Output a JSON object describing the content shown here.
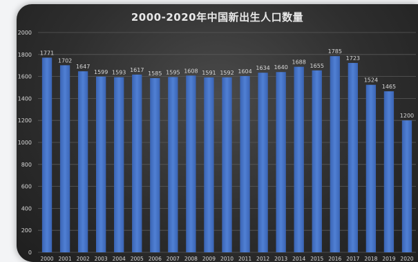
{
  "chart_data": {
    "type": "bar",
    "title": "2000-2020年中国新出生人口数量",
    "xlabel": "",
    "ylabel": "",
    "categories": [
      "2000",
      "2001",
      "2002",
      "2003",
      "2004",
      "2005",
      "2006",
      "2007",
      "2008",
      "2009",
      "2010",
      "2011",
      "2012",
      "2013",
      "2014",
      "2015",
      "2016",
      "2017",
      "2018",
      "2019",
      "2020"
    ],
    "series": [
      {
        "values": [
          1771,
          1702,
          1647,
          1599,
          1593,
          1617,
          1585,
          1595,
          1608,
          1591,
          1592,
          1604,
          1634,
          1640,
          1688,
          1655,
          1785,
          1723,
          1524,
          1465,
          1200
        ]
      }
    ],
    "y_ticks": [
      "0",
      "200",
      "400",
      "600",
      "800",
      "1000",
      "1200",
      "1400",
      "1600",
      "1800",
      "2000"
    ],
    "ylim": [
      0,
      2000
    ],
    "grid": true,
    "legend": "none",
    "colors": {
      "bar": "#4472c4",
      "bar_light": "#5b86d6",
      "grid": "#5a5a5a",
      "text": "#d9d9d9",
      "title": "#e8e8e8"
    }
  }
}
